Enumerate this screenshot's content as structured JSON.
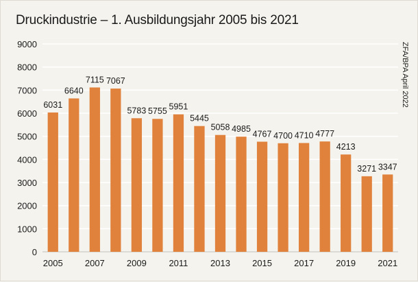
{
  "chart_data": {
    "type": "bar",
    "title": "Druckindustrie – 1. Ausbildungsjahr 2005 bis 2021",
    "source_note": "ZFA/BPA April 2022",
    "categories": [
      "2005",
      "2006",
      "2007",
      "2008",
      "2009",
      "2010",
      "2011",
      "2012",
      "2013",
      "2014",
      "2015",
      "2016",
      "2017",
      "2018",
      "2019",
      "2020",
      "2021"
    ],
    "values": [
      6031,
      6640,
      7115,
      7067,
      5783,
      5755,
      5951,
      5445,
      5058,
      4985,
      4767,
      4700,
      4710,
      4777,
      4213,
      3271,
      3347
    ],
    "x_tick_labels": [
      "2005",
      "2007",
      "2009",
      "2011",
      "2013",
      "2015",
      "2017",
      "2019",
      "2021"
    ],
    "y_ticks": [
      0,
      1000,
      2000,
      3000,
      4000,
      5000,
      6000,
      7000,
      8000,
      9000
    ],
    "ylim": [
      0,
      9000
    ],
    "xlabel": "",
    "ylabel": "",
    "grid": true,
    "bar_color": "#e0823b",
    "grid_color": "#ffffff"
  }
}
